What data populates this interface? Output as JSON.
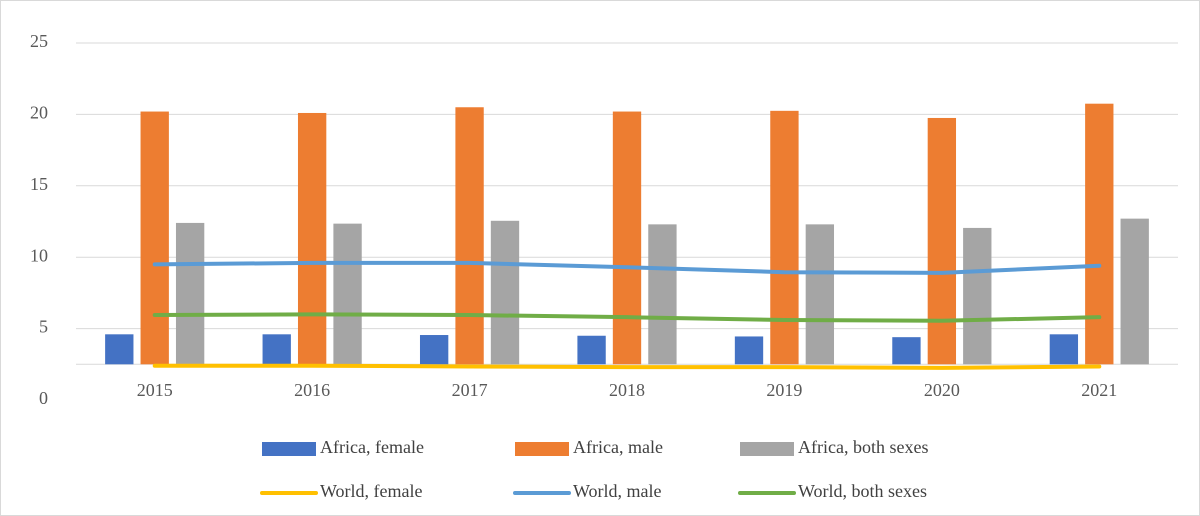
{
  "chart_data": {
    "type": "bar_line",
    "categories": [
      "2015",
      "2016",
      "2017",
      "2018",
      "2019",
      "2020",
      "2021"
    ],
    "series": [
      {
        "name": "Africa, female",
        "type": "bar",
        "color": "#4472c4",
        "values": [
          4.6,
          4.6,
          4.55,
          4.5,
          4.45,
          4.4,
          4.6
        ]
      },
      {
        "name": "Africa, male",
        "type": "bar",
        "color": "#ed7d31",
        "values": [
          20.2,
          20.1,
          20.5,
          20.2,
          20.25,
          19.75,
          20.75
        ]
      },
      {
        "name": "Africa, both sexes",
        "type": "bar",
        "color": "#a5a5a5",
        "values": [
          12.4,
          12.35,
          12.55,
          12.3,
          12.3,
          12.05,
          12.7
        ]
      },
      {
        "name": "World, female",
        "type": "line",
        "color": "#ffc000",
        "values": [
          2.4,
          2.4,
          2.35,
          2.3,
          2.3,
          2.25,
          2.35
        ]
      },
      {
        "name": "World, male",
        "type": "line",
        "color": "#5b9bd5",
        "values": [
          9.5,
          9.6,
          9.6,
          9.3,
          8.95,
          8.9,
          9.4
        ]
      },
      {
        "name": "World, both sexes",
        "type": "line",
        "color": "#70ad47",
        "values": [
          5.95,
          6.0,
          5.95,
          5.8,
          5.6,
          5.55,
          5.8
        ]
      }
    ],
    "ylim": [
      0,
      25
    ],
    "yticks": [
      0,
      5,
      10,
      15,
      20,
      25
    ],
    "xaxis_crosses_at": 2.5,
    "grid": true,
    "legend": "bottom"
  }
}
